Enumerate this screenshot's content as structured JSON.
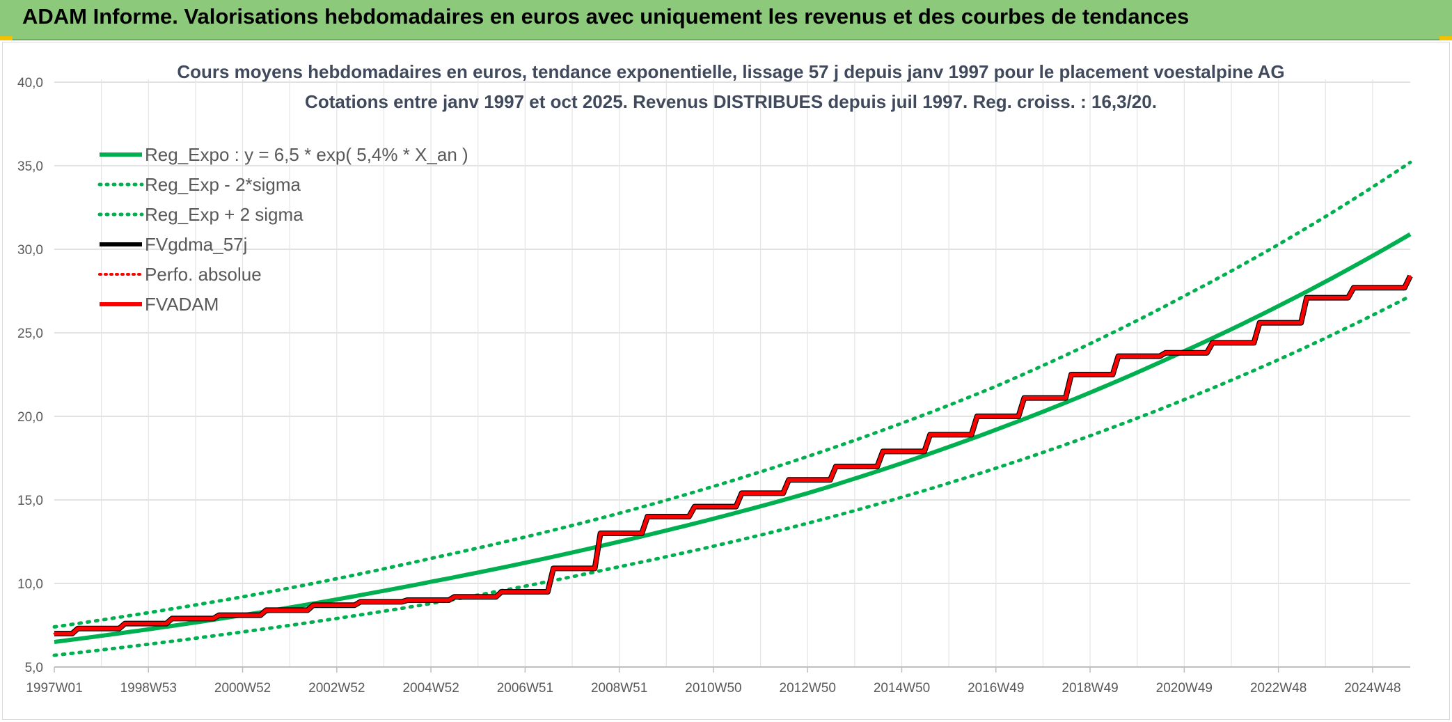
{
  "banner": {
    "title": "ADAM Informe. Valorisations hebdomadaires en euros avec uniquement les revenus et des courbes de tendances"
  },
  "colors": {
    "banner_bg": "#8cc97a",
    "trend_green": "#00b050",
    "black_series": "#000000",
    "red_series": "#ff0000",
    "grid": "#d9d9d9"
  },
  "chart_data": {
    "type": "line",
    "title_lines": [
      "Cours moyens hebdomadaires en euros, tendance exponentielle, lissage 57 j depuis janv 1997 pour le placement voestalpine AG",
      "Cotations entre janv 1997 et oct 2025. Revenus DISTRIBUES depuis juil 1997. Reg. croiss. : 16,3/20."
    ],
    "xlabel": "",
    "ylabel": "",
    "ylim": [
      5,
      40
    ],
    "y_ticks": [
      "5,0",
      "10,0",
      "15,0",
      "20,0",
      "25,0",
      "30,0",
      "35,0",
      "40,0"
    ],
    "x_range_years": [
      1997.0,
      2025.8
    ],
    "x_ticks": [
      {
        "label": "1997W01",
        "year": 1997.0
      },
      {
        "label": "1998W53",
        "year": 1999.0
      },
      {
        "label": "2000W52",
        "year": 2001.0
      },
      {
        "label": "2002W52",
        "year": 2003.0
      },
      {
        "label": "2004W52",
        "year": 2005.0
      },
      {
        "label": "2006W51",
        "year": 2007.0
      },
      {
        "label": "2008W51",
        "year": 2009.0
      },
      {
        "label": "2010W50",
        "year": 2011.0
      },
      {
        "label": "2012W50",
        "year": 2013.0
      },
      {
        "label": "2014W50",
        "year": 2015.0
      },
      {
        "label": "2016W49",
        "year": 2017.0
      },
      {
        "label": "2018W49",
        "year": 2019.0
      },
      {
        "label": "2020W49",
        "year": 2021.0
      },
      {
        "label": "2022W48",
        "year": 2023.0
      },
      {
        "label": "2024W48",
        "year": 2025.0
      }
    ],
    "grid": true,
    "legend_position": "top-left",
    "legend": [
      {
        "label": "Reg_Expo : y = 6,5 * exp( 5,4% *  X_an )",
        "style": "solid-green"
      },
      {
        "label": "Reg_Exp - 2*sigma",
        "style": "dotted-green"
      },
      {
        "label": "Reg_Exp + 2 sigma",
        "style": "dotted-green"
      },
      {
        "label": "FVgdma_57j",
        "style": "solid-black"
      },
      {
        "label": "Perfo. absolue",
        "style": "dotted-red"
      },
      {
        "label": "FVADAM",
        "style": "solid-red"
      }
    ],
    "series": [
      {
        "name": "Reg_Expo : y = 6,5 * exp( 5,4% *  X_an )",
        "x": [
          1997.0,
          2001.0,
          2005.0,
          2009.0,
          2013.0,
          2017.0,
          2021.0,
          2025.8
        ],
        "y": [
          6.5,
          8.1,
          10.1,
          12.5,
          15.4,
          19.2,
          23.9,
          30.9
        ]
      },
      {
        "name": "Reg_Exp - 2*sigma",
        "x": [
          1997.0,
          2001.0,
          2005.0,
          2009.0,
          2013.0,
          2017.0,
          2021.0,
          2025.8
        ],
        "y": [
          5.7,
          7.1,
          8.8,
          11.0,
          13.6,
          16.9,
          21.0,
          27.2
        ]
      },
      {
        "name": "Reg_Exp + 2 sigma",
        "x": [
          1997.0,
          2001.0,
          2005.0,
          2009.0,
          2013.0,
          2017.0,
          2021.0,
          2025.8
        ],
        "y": [
          7.4,
          9.2,
          11.5,
          14.2,
          17.6,
          21.8,
          27.2,
          35.2
        ]
      },
      {
        "name": "FVgdma_57j",
        "x": [
          1997.0,
          1997.5,
          1998.5,
          1999.5,
          2000.5,
          2001.5,
          2002.5,
          2003.5,
          2004.5,
          2005.5,
          2006.5,
          2007.6,
          2008.6,
          2009.6,
          2010.6,
          2011.6,
          2012.6,
          2013.6,
          2014.6,
          2015.6,
          2016.6,
          2017.6,
          2018.6,
          2019.6,
          2020.6,
          2021.6,
          2022.6,
          2023.6,
          2024.6,
          2025.8
        ],
        "y": [
          7.0,
          7.3,
          7.6,
          7.9,
          8.1,
          8.4,
          8.7,
          8.9,
          9.0,
          9.2,
          9.5,
          10.9,
          13.0,
          14.0,
          14.6,
          15.4,
          16.2,
          17.0,
          17.9,
          18.9,
          20.0,
          21.1,
          22.5,
          23.6,
          23.8,
          24.4,
          25.6,
          27.1,
          27.7,
          28.4
        ]
      },
      {
        "name": "Perfo. absolue",
        "x": [
          1997.0,
          1997.5,
          1998.5,
          1999.5,
          2000.5,
          2001.5,
          2002.5,
          2003.5,
          2004.5,
          2005.5,
          2006.5,
          2007.6,
          2008.6,
          2009.6,
          2010.6,
          2011.6,
          2012.6,
          2013.6,
          2014.6,
          2015.6,
          2016.6,
          2017.6,
          2018.6,
          2019.6,
          2020.6,
          2021.6,
          2022.6,
          2023.6,
          2024.6,
          2025.8
        ],
        "y": [
          7.0,
          7.3,
          7.6,
          7.9,
          8.1,
          8.4,
          8.7,
          8.9,
          9.0,
          9.2,
          9.5,
          10.9,
          13.0,
          14.0,
          14.6,
          15.4,
          16.2,
          17.0,
          17.9,
          18.9,
          20.0,
          21.1,
          22.5,
          23.6,
          23.8,
          24.4,
          25.6,
          27.1,
          27.7,
          28.4
        ]
      },
      {
        "name": "FVADAM",
        "x": [
          1997.0,
          1997.5,
          1998.5,
          1999.5,
          2000.5,
          2001.5,
          2002.5,
          2003.5,
          2004.5,
          2005.5,
          2006.5,
          2007.6,
          2008.6,
          2009.6,
          2010.6,
          2011.6,
          2012.6,
          2013.6,
          2014.6,
          2015.6,
          2016.6,
          2017.6,
          2018.6,
          2019.6,
          2020.6,
          2021.6,
          2022.6,
          2023.6,
          2024.6,
          2025.8
        ],
        "y": [
          7.0,
          7.3,
          7.6,
          7.9,
          8.1,
          8.4,
          8.7,
          8.9,
          9.0,
          9.2,
          9.5,
          10.9,
          13.0,
          14.0,
          14.6,
          15.4,
          16.2,
          17.0,
          17.9,
          18.9,
          20.0,
          21.1,
          22.5,
          23.6,
          23.8,
          24.4,
          25.6,
          27.1,
          27.7,
          28.4
        ]
      }
    ]
  }
}
